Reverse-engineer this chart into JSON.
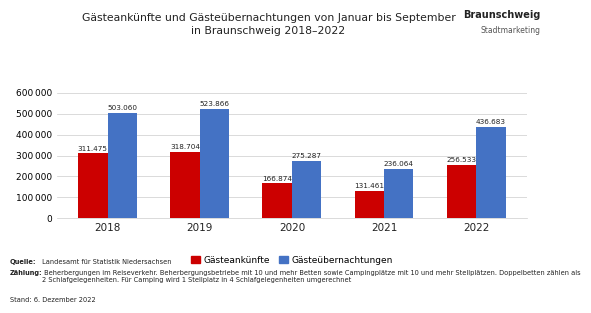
{
  "title_line1": "Gästeankünfte und Gästeübernachtungen von Januar bis September",
  "title_line2": "in Braunschweig 2018–2022",
  "years": [
    "2018",
    "2019",
    "2020",
    "2021",
    "2022"
  ],
  "gaesteankunfte": [
    311475,
    318704,
    166874,
    131461,
    256533
  ],
  "gaesteuebernachtungen": [
    503060,
    523866,
    275287,
    236064,
    436683
  ],
  "color_ankuenfte": "#cc0000",
  "color_uebernachtungen": "#4472c4",
  "legend_ankuenfte": "Gästeankünfte",
  "legend_uebernachtungen": "Gästeübernachtungen",
  "ylim": [
    0,
    630000
  ],
  "yticks": [
    0,
    100000,
    200000,
    300000,
    400000,
    500000,
    600000
  ],
  "source_bold": "Quelle:",
  "source_text": " Landesamt für Statistik Niedersachsen",
  "zaehlung_bold": "Zählung:",
  "zaehlung_text": " Beherbergungen im Reiseverkehr. Beherbergungsbetriebe mit 10 und mehr Betten sowie Campingplätze mit 10 und mehr Stellplätzen. Doppelbetten zählen als\n2 Schlafgelegenheiten. Für Camping wird 1 Stellplatz in 4 Schlafgelegenheiten umgerechnet",
  "stand_text": "Stand: 6. Dezember 2022",
  "background_color": "#ffffff",
  "bar_width": 0.32,
  "logo_line1": "Braunschweig",
  "logo_line2": "Stadtmarketing"
}
